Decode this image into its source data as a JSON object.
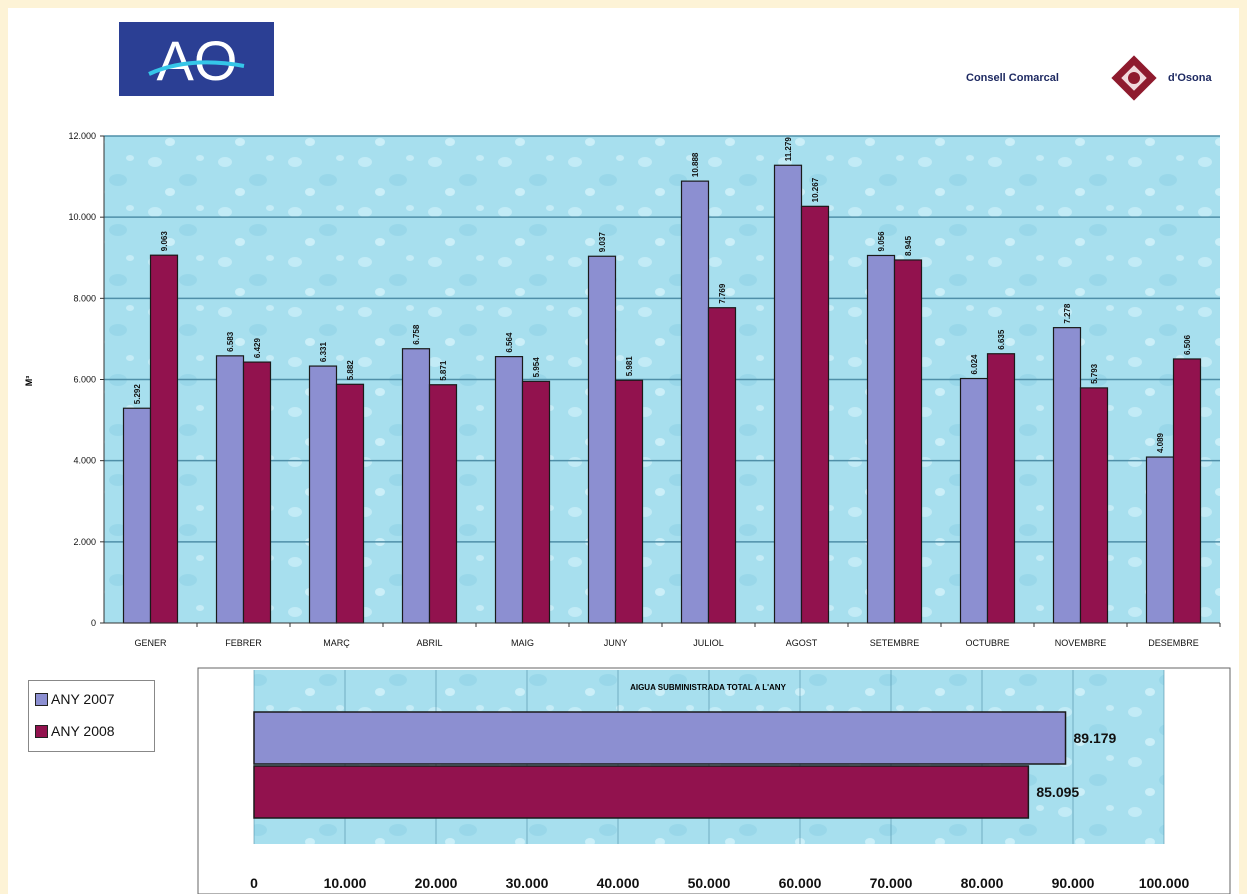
{
  "header": {
    "logo_text": "AO",
    "org_left": "Consell Comarcal",
    "org_right": "d'Osona"
  },
  "colors": {
    "series_2007": "#8c8fd1",
    "series_2008": "#92124e",
    "plot_bg": "#a7dfee",
    "grid": "#4f8fa8",
    "logo_bg": "#2b3f94",
    "emblem": "#8f1b2e"
  },
  "legend": {
    "items": [
      {
        "label": "ANY 2007",
        "color": "#8c8fd1"
      },
      {
        "label": "ANY 2008",
        "color": "#92124e"
      }
    ]
  },
  "chart_data": [
    {
      "type": "bar",
      "title": "",
      "xlabel": "",
      "ylabel": "M³",
      "ylim": [
        0,
        12000
      ],
      "yticks": [
        "0",
        "2.000",
        "4.000",
        "6.000",
        "8.000",
        "10.000",
        "12.000"
      ],
      "grid": true,
      "categories": [
        "GENER",
        "FEBRER",
        "MARÇ",
        "ABRIL",
        "MAIG",
        "JUNY",
        "JULIOL",
        "AGOST",
        "SETEMBRE",
        "OCTUBRE",
        "NOVEMBRE",
        "DESEMBRE"
      ],
      "series": [
        {
          "name": "ANY 2007",
          "values": [
            5292,
            6583,
            6331,
            6758,
            6564,
            9037,
            10888,
            11279,
            9056,
            6024,
            7278,
            4089
          ],
          "labels": [
            "5.292",
            "6.583",
            "6.331",
            "6.758",
            "6.564",
            "9.037",
            "10.888",
            "11.279",
            "9.056",
            "6.024",
            "7.278",
            "4.089"
          ]
        },
        {
          "name": "ANY 2008",
          "values": [
            9063,
            6429,
            5882,
            5871,
            5954,
            5981,
            7769,
            10267,
            8945,
            6635,
            5793,
            6506
          ],
          "labels": [
            "9.063",
            "6.429",
            "5.882",
            "5.871",
            "5.954",
            "5.981",
            "7.769",
            "10.267",
            "8.945",
            "6.635",
            "5.793",
            "6.506"
          ]
        }
      ]
    },
    {
      "type": "bar",
      "orientation": "horizontal",
      "title": "AIGUA SUBMINISTRADA TOTAL A L'ANY",
      "xlim": [
        0,
        100000
      ],
      "xticks": [
        "0",
        "10.000",
        "20.000",
        "30.000",
        "40.000",
        "50.000",
        "60.000",
        "70.000",
        "80.000",
        "90.000",
        "100.000"
      ],
      "grid": true,
      "series": [
        {
          "name": "ANY 2007",
          "value": 89179,
          "label": "89.179"
        },
        {
          "name": "ANY 2008",
          "value": 85095,
          "label": "85.095"
        }
      ]
    }
  ]
}
